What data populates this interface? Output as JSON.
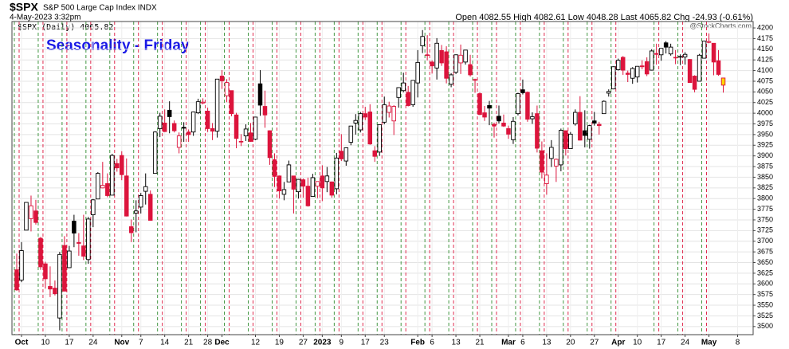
{
  "chart_data": {
    "type": "candlestick",
    "symbol": "$SPX",
    "name": "S&P 500 Large Cap Index INDX",
    "timestamp": "4-May-2023 3:32pm",
    "quote": "Open 4082.55  High 4082.61  Low 4048.28  Last 4065.82  Chg -24.93 (-0.61%)",
    "credit": "@StockCharts.com",
    "legend": "$SPX (Daily) 4065.82",
    "title": "Seasonality - Friday",
    "up_color": "#000000",
    "down_color": "#dc143c",
    "highlight_last_color": "#ffd700",
    "friday_before_color": "#2e8b2e",
    "friday_after_color": "#dc143c",
    "grid": true,
    "ylim": [
      3481,
      4215
    ],
    "yticks": [
      3500,
      3525,
      3550,
      3575,
      3600,
      3625,
      3650,
      3675,
      3700,
      3725,
      3750,
      3775,
      3800,
      3825,
      3850,
      3875,
      3900,
      3925,
      3950,
      3975,
      4000,
      4025,
      4050,
      4075,
      4100,
      4125,
      4150,
      4175,
      4200
    ],
    "xticks": [
      {
        "value": 1,
        "label": "Oct"
      },
      {
        "value": 6,
        "label": "10"
      },
      {
        "value": 11,
        "label": "17"
      },
      {
        "value": 16,
        "label": "24"
      },
      {
        "value": 22,
        "label": "Nov"
      },
      {
        "value": 26,
        "label": "7"
      },
      {
        "value": 31,
        "label": "14"
      },
      {
        "value": 36,
        "label": "21"
      },
      {
        "value": 40,
        "label": "28"
      },
      {
        "value": 43,
        "label": "Dec"
      },
      {
        "value": 50,
        "label": "12"
      },
      {
        "value": 55,
        "label": "19"
      },
      {
        "value": 60,
        "label": "27"
      },
      {
        "value": 64,
        "label": "2023"
      },
      {
        "value": 68,
        "label": "9"
      },
      {
        "value": 73,
        "label": "17"
      },
      {
        "value": 77,
        "label": "23"
      },
      {
        "value": 84,
        "label": "Feb"
      },
      {
        "value": 87,
        "label": "6"
      },
      {
        "value": 92,
        "label": "13"
      },
      {
        "value": 97,
        "label": "21"
      },
      {
        "value": 103,
        "label": "Mar"
      },
      {
        "value": 106,
        "label": "6"
      },
      {
        "value": 111,
        "label": "13"
      },
      {
        "value": 116,
        "label": "20"
      },
      {
        "value": 121,
        "label": "27"
      },
      {
        "value": 126,
        "label": "Apr"
      },
      {
        "value": 130,
        "label": "10"
      },
      {
        "value": 135,
        "label": "17"
      },
      {
        "value": 140,
        "label": "24"
      },
      {
        "value": 145,
        "label": "May"
      },
      {
        "value": 151,
        "label": "8"
      }
    ],
    "x": [
      "2022-09-30",
      "2022-10-03",
      "2022-10-04",
      "2022-10-05",
      "2022-10-06",
      "2022-10-07",
      "2022-10-10",
      "2022-10-11",
      "2022-10-12",
      "2022-10-13",
      "2022-10-14",
      "2022-10-17",
      "2022-10-18",
      "2022-10-19",
      "2022-10-20",
      "2022-10-21",
      "2022-10-24",
      "2022-10-25",
      "2022-10-26",
      "2022-10-27",
      "2022-10-28",
      "2022-10-31",
      "2022-11-01",
      "2022-11-02",
      "2022-11-03",
      "2022-11-04",
      "2022-11-07",
      "2022-11-08",
      "2022-11-09",
      "2022-11-10",
      "2022-11-11",
      "2022-11-14",
      "2022-11-15",
      "2022-11-16",
      "2022-11-17",
      "2022-11-18",
      "2022-11-21",
      "2022-11-22",
      "2022-11-23",
      "2022-11-25",
      "2022-11-28",
      "2022-11-29",
      "2022-11-30",
      "2022-12-01",
      "2022-12-02",
      "2022-12-05",
      "2022-12-06",
      "2022-12-07",
      "2022-12-08",
      "2022-12-09",
      "2022-12-12",
      "2022-12-13",
      "2022-12-14",
      "2022-12-15",
      "2022-12-16",
      "2022-12-19",
      "2022-12-20",
      "2022-12-21",
      "2022-12-22",
      "2022-12-23",
      "2022-12-27",
      "2022-12-28",
      "2022-12-29",
      "2022-12-30",
      "2023-01-03",
      "2023-01-04",
      "2023-01-05",
      "2023-01-06",
      "2023-01-09",
      "2023-01-10",
      "2023-01-11",
      "2023-01-12",
      "2023-01-13",
      "2023-01-17",
      "2023-01-18",
      "2023-01-19",
      "2023-01-20",
      "2023-01-23",
      "2023-01-24",
      "2023-01-25",
      "2023-01-26",
      "2023-01-27",
      "2023-01-30",
      "2023-01-31",
      "2023-02-01",
      "2023-02-02",
      "2023-02-03",
      "2023-02-06",
      "2023-02-07",
      "2023-02-08",
      "2023-02-09",
      "2023-02-10",
      "2023-02-13",
      "2023-02-14",
      "2023-02-15",
      "2023-02-16",
      "2023-02-17",
      "2023-02-21",
      "2023-02-22",
      "2023-02-23",
      "2023-02-24",
      "2023-02-27",
      "2023-02-28",
      "2023-03-01",
      "2023-03-02",
      "2023-03-03",
      "2023-03-06",
      "2023-03-07",
      "2023-03-08",
      "2023-03-09",
      "2023-03-10",
      "2023-03-13",
      "2023-03-14",
      "2023-03-15",
      "2023-03-16",
      "2023-03-17",
      "2023-03-20",
      "2023-03-21",
      "2023-03-22",
      "2023-03-23",
      "2023-03-24",
      "2023-03-27",
      "2023-03-28",
      "2023-03-29",
      "2023-03-30",
      "2023-03-31",
      "2023-04-03",
      "2023-04-04",
      "2023-04-05",
      "2023-04-06",
      "2023-04-10",
      "2023-04-11",
      "2023-04-12",
      "2023-04-13",
      "2023-04-14",
      "2023-04-17",
      "2023-04-18",
      "2023-04-19",
      "2023-04-20",
      "2023-04-21",
      "2023-04-24",
      "2023-04-25",
      "2023-04-26",
      "2023-04-27",
      "2023-04-28",
      "2023-05-01",
      "2023-05-02",
      "2023-05-03",
      "2023-05-04"
    ],
    "ohlc": [
      [
        3633,
        3671,
        3584,
        3586
      ],
      [
        3609,
        3698,
        3604,
        3678
      ],
      [
        3726,
        3791,
        3726,
        3791
      ],
      [
        3753,
        3807,
        3723,
        3783
      ],
      [
        3771,
        3797,
        3739,
        3744
      ],
      [
        3707,
        3710,
        3633,
        3640
      ],
      [
        3647,
        3652,
        3589,
        3612
      ],
      [
        3594,
        3641,
        3569,
        3588
      ],
      [
        3590,
        3608,
        3573,
        3577
      ],
      [
        3520,
        3675,
        3491,
        3669
      ],
      [
        3690,
        3712,
        3583,
        3583
      ],
      [
        3638,
        3689,
        3638,
        3677
      ],
      [
        3747,
        3762,
        3686,
        3719
      ],
      [
        3697,
        3719,
        3666,
        3695
      ],
      [
        3689,
        3762,
        3656,
        3665
      ],
      [
        3657,
        3757,
        3647,
        3752
      ],
      [
        3762,
        3799,
        3733,
        3797
      ],
      [
        3799,
        3862,
        3799,
        3859
      ],
      [
        3825,
        3886,
        3824,
        3831
      ],
      [
        3835,
        3859,
        3803,
        3807
      ],
      [
        3808,
        3905,
        3808,
        3901
      ],
      [
        3882,
        3893,
        3863,
        3872
      ],
      [
        3901,
        3911,
        3843,
        3856
      ],
      [
        3853,
        3894,
        3758,
        3759
      ],
      [
        3734,
        3751,
        3698,
        3720
      ],
      [
        3766,
        3796,
        3721,
        3771
      ],
      [
        3780,
        3813,
        3765,
        3807
      ],
      [
        3817,
        3859,
        3786,
        3828
      ],
      [
        3810,
        3819,
        3748,
        3749
      ],
      [
        3859,
        3958,
        3859,
        3956
      ],
      [
        3964,
        4001,
        3944,
        3993
      ],
      [
        3977,
        4009,
        3956,
        3957
      ],
      [
        4007,
        4028,
        3953,
        3992
      ],
      [
        3976,
        3983,
        3955,
        3959
      ],
      [
        3920,
        3955,
        3906,
        3947
      ],
      [
        3967,
        3979,
        3933,
        3965
      ],
      [
        3956,
        3962,
        3933,
        3950
      ],
      [
        3956,
        4004,
        3947,
        4003
      ],
      [
        4001,
        4034,
        3998,
        4027
      ],
      [
        4024,
        4035,
        4021,
        4026
      ],
      [
        4005,
        4013,
        3956,
        3964
      ],
      [
        3964,
        3977,
        3937,
        3958
      ],
      [
        3958,
        4080,
        3943,
        4080
      ],
      [
        4087,
        4101,
        4057,
        4076
      ],
      [
        4041,
        4080,
        4026,
        4072
      ],
      [
        4053,
        4053,
        3993,
        3999
      ],
      [
        3996,
        4001,
        3918,
        3941
      ],
      [
        3934,
        3951,
        3923,
        3933
      ],
      [
        3947,
        3974,
        3935,
        3963
      ],
      [
        3954,
        3977,
        3933,
        3934
      ],
      [
        3939,
        3990,
        3937,
        3991
      ],
      [
        4069,
        4101,
        3994,
        4019
      ],
      [
        4016,
        4053,
        3966,
        3996
      ],
      [
        3959,
        3960,
        3879,
        3896
      ],
      [
        3891,
        3906,
        3827,
        3852
      ],
      [
        3853,
        3854,
        3800,
        3818
      ],
      [
        3810,
        3839,
        3796,
        3821
      ],
      [
        3839,
        3889,
        3839,
        3879
      ],
      [
        3853,
        3853,
        3765,
        3822
      ],
      [
        3816,
        3846,
        3800,
        3845
      ],
      [
        3844,
        3847,
        3802,
        3829
      ],
      [
        3829,
        3849,
        3781,
        3783
      ],
      [
        3805,
        3858,
        3805,
        3849
      ],
      [
        3829,
        3839,
        3801,
        3840
      ],
      [
        3853,
        3878,
        3794,
        3825
      ],
      [
        3840,
        3874,
        3815,
        3853
      ],
      [
        3839,
        3840,
        3802,
        3808
      ],
      [
        3823,
        3907,
        3810,
        3895
      ],
      [
        3911,
        3951,
        3888,
        3893
      ],
      [
        3888,
        3920,
        3877,
        3919
      ],
      [
        3932,
        3970,
        3925,
        3970
      ],
      [
        3977,
        3998,
        3950,
        3983
      ],
      [
        3961,
        4003,
        3955,
        3999
      ],
      [
        3999,
        4015,
        3984,
        3991
      ],
      [
        4003,
        4021,
        3926,
        3928
      ],
      [
        3912,
        3923,
        3886,
        3899
      ],
      [
        3909,
        3973,
        3900,
        3973
      ],
      [
        3979,
        4039,
        3974,
        4020
      ],
      [
        4002,
        4027,
        3990,
        4017
      ],
      [
        3982,
        4019,
        3949,
        4016
      ],
      [
        4037,
        4061,
        4013,
        4060
      ],
      [
        4053,
        4095,
        4049,
        4071
      ],
      [
        4049,
        4064,
        4016,
        4018
      ],
      [
        4020,
        4077,
        4015,
        4077
      ],
      [
        4071,
        4148,
        4037,
        4119
      ],
      [
        4158,
        4195,
        4141,
        4180
      ],
      [
        4137,
        4183,
        4124,
        4136
      ],
      [
        4120,
        4124,
        4093,
        4111
      ],
      [
        4106,
        4176,
        4079,
        4164
      ],
      [
        4147,
        4160,
        4111,
        4118
      ],
      [
        4144,
        4157,
        4070,
        4082
      ],
      [
        4068,
        4094,
        4061,
        4090
      ],
      [
        4096,
        4138,
        4092,
        4137
      ],
      [
        4118,
        4161,
        4092,
        4136
      ],
      [
        4120,
        4148,
        4114,
        4148
      ],
      [
        4114,
        4137,
        4086,
        4090
      ],
      [
        4078,
        4081,
        4048,
        4079
      ],
      [
        4046,
        4049,
        3996,
        3997
      ],
      [
        4001,
        4017,
        3982,
        3991
      ],
      [
        4018,
        4029,
        3972,
        4012
      ],
      [
        3974,
        3978,
        3943,
        3970
      ],
      [
        3993,
        4018,
        3976,
        3982
      ],
      [
        3977,
        3997,
        3968,
        3970
      ],
      [
        3964,
        3971,
        3940,
        3951
      ],
      [
        3938,
        3991,
        3928,
        3981
      ],
      [
        3999,
        4048,
        3995,
        4046
      ],
      [
        4055,
        4079,
        4044,
        4048
      ],
      [
        4049,
        4051,
        3980,
        3986
      ],
      [
        3987,
        4002,
        3975,
        3992
      ],
      [
        3999,
        4018,
        3908,
        3918
      ],
      [
        3912,
        3934,
        3847,
        3862
      ],
      [
        3835,
        3906,
        3809,
        3855
      ],
      [
        3894,
        3937,
        3874,
        3920
      ],
      [
        3876,
        3894,
        3839,
        3892
      ],
      [
        3879,
        3964,
        3864,
        3960
      ],
      [
        3959,
        3959,
        3901,
        3917
      ],
      [
        3917,
        3956,
        3917,
        3951
      ],
      [
        3975,
        4009,
        3971,
        4002
      ],
      [
        4002,
        4040,
        3936,
        3937
      ],
      [
        3959,
        4007,
        3920,
        3948
      ],
      [
        3939,
        3973,
        3917,
        3971
      ],
      [
        3982,
        4003,
        3971,
        3977
      ],
      [
        3974,
        3980,
        3950,
        3971
      ],
      [
        3999,
        4030,
        3999,
        4028
      ],
      [
        4047,
        4056,
        4039,
        4051
      ],
      [
        4057,
        4110,
        4056,
        4109
      ],
      [
        4102,
        4128,
        4100,
        4124
      ],
      [
        4131,
        4134,
        4090,
        4101
      ],
      [
        4094,
        4100,
        4073,
        4091
      ],
      [
        4082,
        4108,
        4069,
        4105
      ],
      [
        4085,
        4110,
        4072,
        4110
      ],
      [
        4111,
        4124,
        4103,
        4109
      ],
      [
        4121,
        4131,
        4087,
        4092
      ],
      [
        4101,
        4150,
        4100,
        4146
      ],
      [
        4140,
        4163,
        4114,
        4138
      ],
      [
        4137,
        4152,
        4123,
        4152
      ],
      [
        4165,
        4169,
        4140,
        4155
      ],
      [
        4139,
        4163,
        4135,
        4155
      ],
      [
        4131,
        4148,
        4115,
        4130
      ],
      [
        4133,
        4138,
        4113,
        4133
      ],
      [
        4132,
        4143,
        4114,
        4138
      ],
      [
        4126,
        4127,
        4072,
        4072
      ],
      [
        4087,
        4089,
        4049,
        4056
      ],
      [
        4075,
        4139,
        4075,
        4136
      ],
      [
        4129,
        4170,
        4128,
        4169
      ],
      [
        4166,
        4187,
        4164,
        4168
      ],
      [
        4164,
        4164,
        4089,
        4120
      ],
      [
        4123,
        4148,
        4088,
        4091
      ],
      [
        4082.55,
        4082.61,
        4048.28,
        4065.82
      ]
    ]
  }
}
